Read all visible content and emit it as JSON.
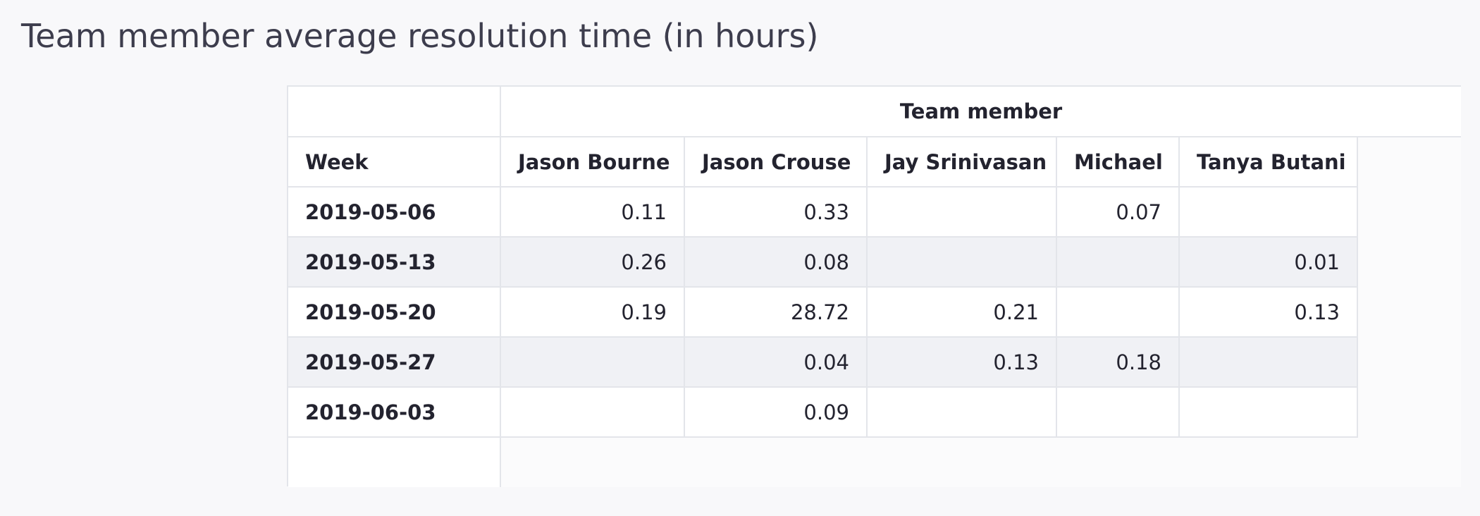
{
  "title": "Team member average resolution time (in hours)",
  "table": {
    "group_header": "Team member",
    "columns": [
      "Week",
      "Jason Bourne",
      "Jason Crouse",
      "Jay Srinivasan",
      "Michael",
      "Tanya Butani"
    ],
    "rows": [
      [
        "2019-05-06",
        0.11,
        0.33,
        null,
        0.07,
        null
      ],
      [
        "2019-05-13",
        0.26,
        0.08,
        null,
        null,
        0.01
      ],
      [
        "2019-05-20",
        0.19,
        28.72,
        0.21,
        null,
        0.13
      ],
      [
        "2019-05-27",
        null,
        0.04,
        0.13,
        0.18,
        null
      ],
      [
        "2019-06-03",
        null,
        0.09,
        null,
        null,
        null
      ]
    ]
  }
}
